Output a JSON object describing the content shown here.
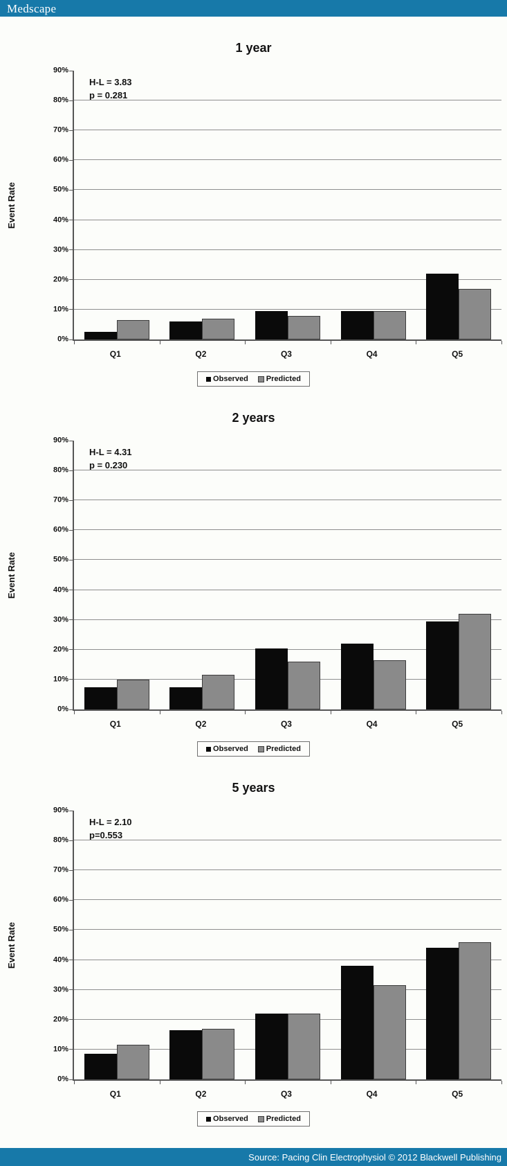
{
  "header": {
    "logo": "Medscape",
    "bg": "#1779a9"
  },
  "footer": {
    "source": "Source: Pacing Clin Electrophysiol © 2012 Blackwell Publishing",
    "bg": "#1779a9"
  },
  "legend": {
    "observed": "Observed",
    "predicted": "Predicted"
  },
  "colors": {
    "observed_bar": "#0a0a0a",
    "predicted_bar": "#8a8a8a",
    "gridline": "#8e8e8e",
    "header_blue": "#1779a9"
  },
  "chart_data": [
    {
      "type": "bar",
      "title": "1 year",
      "annotation": {
        "hl": "H-L = 3.83",
        "p": "p = 0.281"
      },
      "ylabel": "Event Rate",
      "categories": [
        "Q1",
        "Q2",
        "Q3",
        "Q4",
        "Q5"
      ],
      "series": [
        {
          "name": "Observed",
          "values": [
            2.5,
            6,
            9.5,
            9.5,
            22
          ]
        },
        {
          "name": "Predicted",
          "values": [
            6.5,
            7,
            8,
            9.5,
            17
          ]
        }
      ],
      "ylim": [
        0,
        90
      ],
      "yticks": [
        "0%",
        "10%",
        "20%",
        "30%",
        "40%",
        "50%",
        "60%",
        "70%",
        "80%",
        "90%"
      ],
      "grid": true,
      "legend_position": "bottom"
    },
    {
      "type": "bar",
      "title": "2 years",
      "annotation": {
        "hl": "H-L = 4.31",
        "p": "p = 0.230"
      },
      "ylabel": "Event Rate",
      "categories": [
        "Q1",
        "Q2",
        "Q3",
        "Q4",
        "Q5"
      ],
      "series": [
        {
          "name": "Observed",
          "values": [
            7.5,
            7.5,
            20.5,
            22,
            29.5
          ]
        },
        {
          "name": "Predicted",
          "values": [
            10,
            11.5,
            16,
            16.5,
            32
          ]
        }
      ],
      "ylim": [
        0,
        90
      ],
      "yticks": [
        "0%",
        "10%",
        "20%",
        "30%",
        "40%",
        "50%",
        "60%",
        "70%",
        "80%",
        "90%"
      ],
      "grid": true,
      "legend_position": "bottom"
    },
    {
      "type": "bar",
      "title": "5 years",
      "annotation": {
        "hl": "H-L = 2.10",
        "p": "p=0.553"
      },
      "ylabel": "Event Rate",
      "categories": [
        "Q1",
        "Q2",
        "Q3",
        "Q4",
        "Q5"
      ],
      "series": [
        {
          "name": "Observed",
          "values": [
            8.5,
            16.5,
            22,
            38,
            44
          ]
        },
        {
          "name": "Predicted",
          "values": [
            11.5,
            17,
            22,
            31.5,
            46
          ]
        }
      ],
      "ylim": [
        0,
        90
      ],
      "yticks": [
        "0%",
        "10%",
        "20%",
        "30%",
        "40%",
        "50%",
        "60%",
        "70%",
        "80%",
        "90%"
      ],
      "grid": true,
      "legend_position": "bottom"
    }
  ]
}
